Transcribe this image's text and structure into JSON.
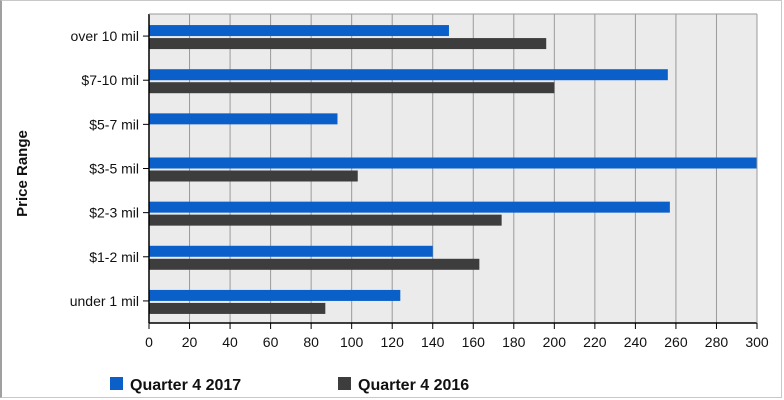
{
  "chart_data": {
    "type": "bar",
    "orientation": "horizontal",
    "categories": [
      "over 10 mil",
      "$7-10 mil",
      "$5-7 mil",
      "$3-5 mil",
      "$2-3 mil",
      "$1-2 mil",
      "under 1 mil"
    ],
    "series": [
      {
        "name": "Quarter 4 2017",
        "color": "#0a5fc8",
        "values": [
          148,
          256,
          93,
          300,
          257,
          140,
          124
        ]
      },
      {
        "name": "Quarter 4 2016",
        "color": "#3d3d3d",
        "values": [
          196,
          200,
          0,
          103,
          174,
          163,
          87
        ]
      }
    ],
    "xlabel": "",
    "ylabel": "Price Range",
    "xlim": [
      0,
      300
    ],
    "xticks": [
      0,
      20,
      40,
      60,
      80,
      100,
      120,
      140,
      160,
      180,
      200,
      220,
      240,
      260,
      280,
      300
    ],
    "grid": true,
    "legend": "bottom"
  }
}
